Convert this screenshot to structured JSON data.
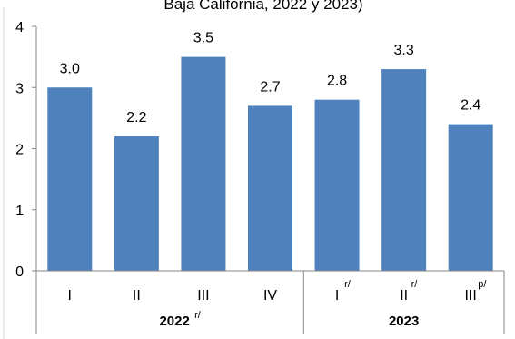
{
  "chart_data": {
    "type": "bar",
    "title": "Baja California, 2022 y 2023)",
    "categories": [
      "I",
      "II",
      "III",
      "IV",
      "I",
      "II",
      "III"
    ],
    "category_superscripts": [
      "",
      "",
      "",
      "",
      "r/",
      "r/",
      "p/"
    ],
    "values": [
      3.0,
      2.2,
      3.5,
      2.7,
      2.8,
      3.3,
      2.4
    ],
    "data_labels": [
      "3.0",
      "2.2",
      "3.5",
      "2.7",
      "2.8",
      "3.3",
      "2.4"
    ],
    "groups": [
      {
        "label": "2022",
        "superscript": "r/",
        "count": 4
      },
      {
        "label": "2023",
        "superscript": "",
        "count": 3
      }
    ],
    "yticks": [
      "0",
      "1",
      "2",
      "3",
      "4"
    ],
    "ylim": [
      0,
      4
    ],
    "grid": false,
    "bar_color": "#4f81bd"
  }
}
